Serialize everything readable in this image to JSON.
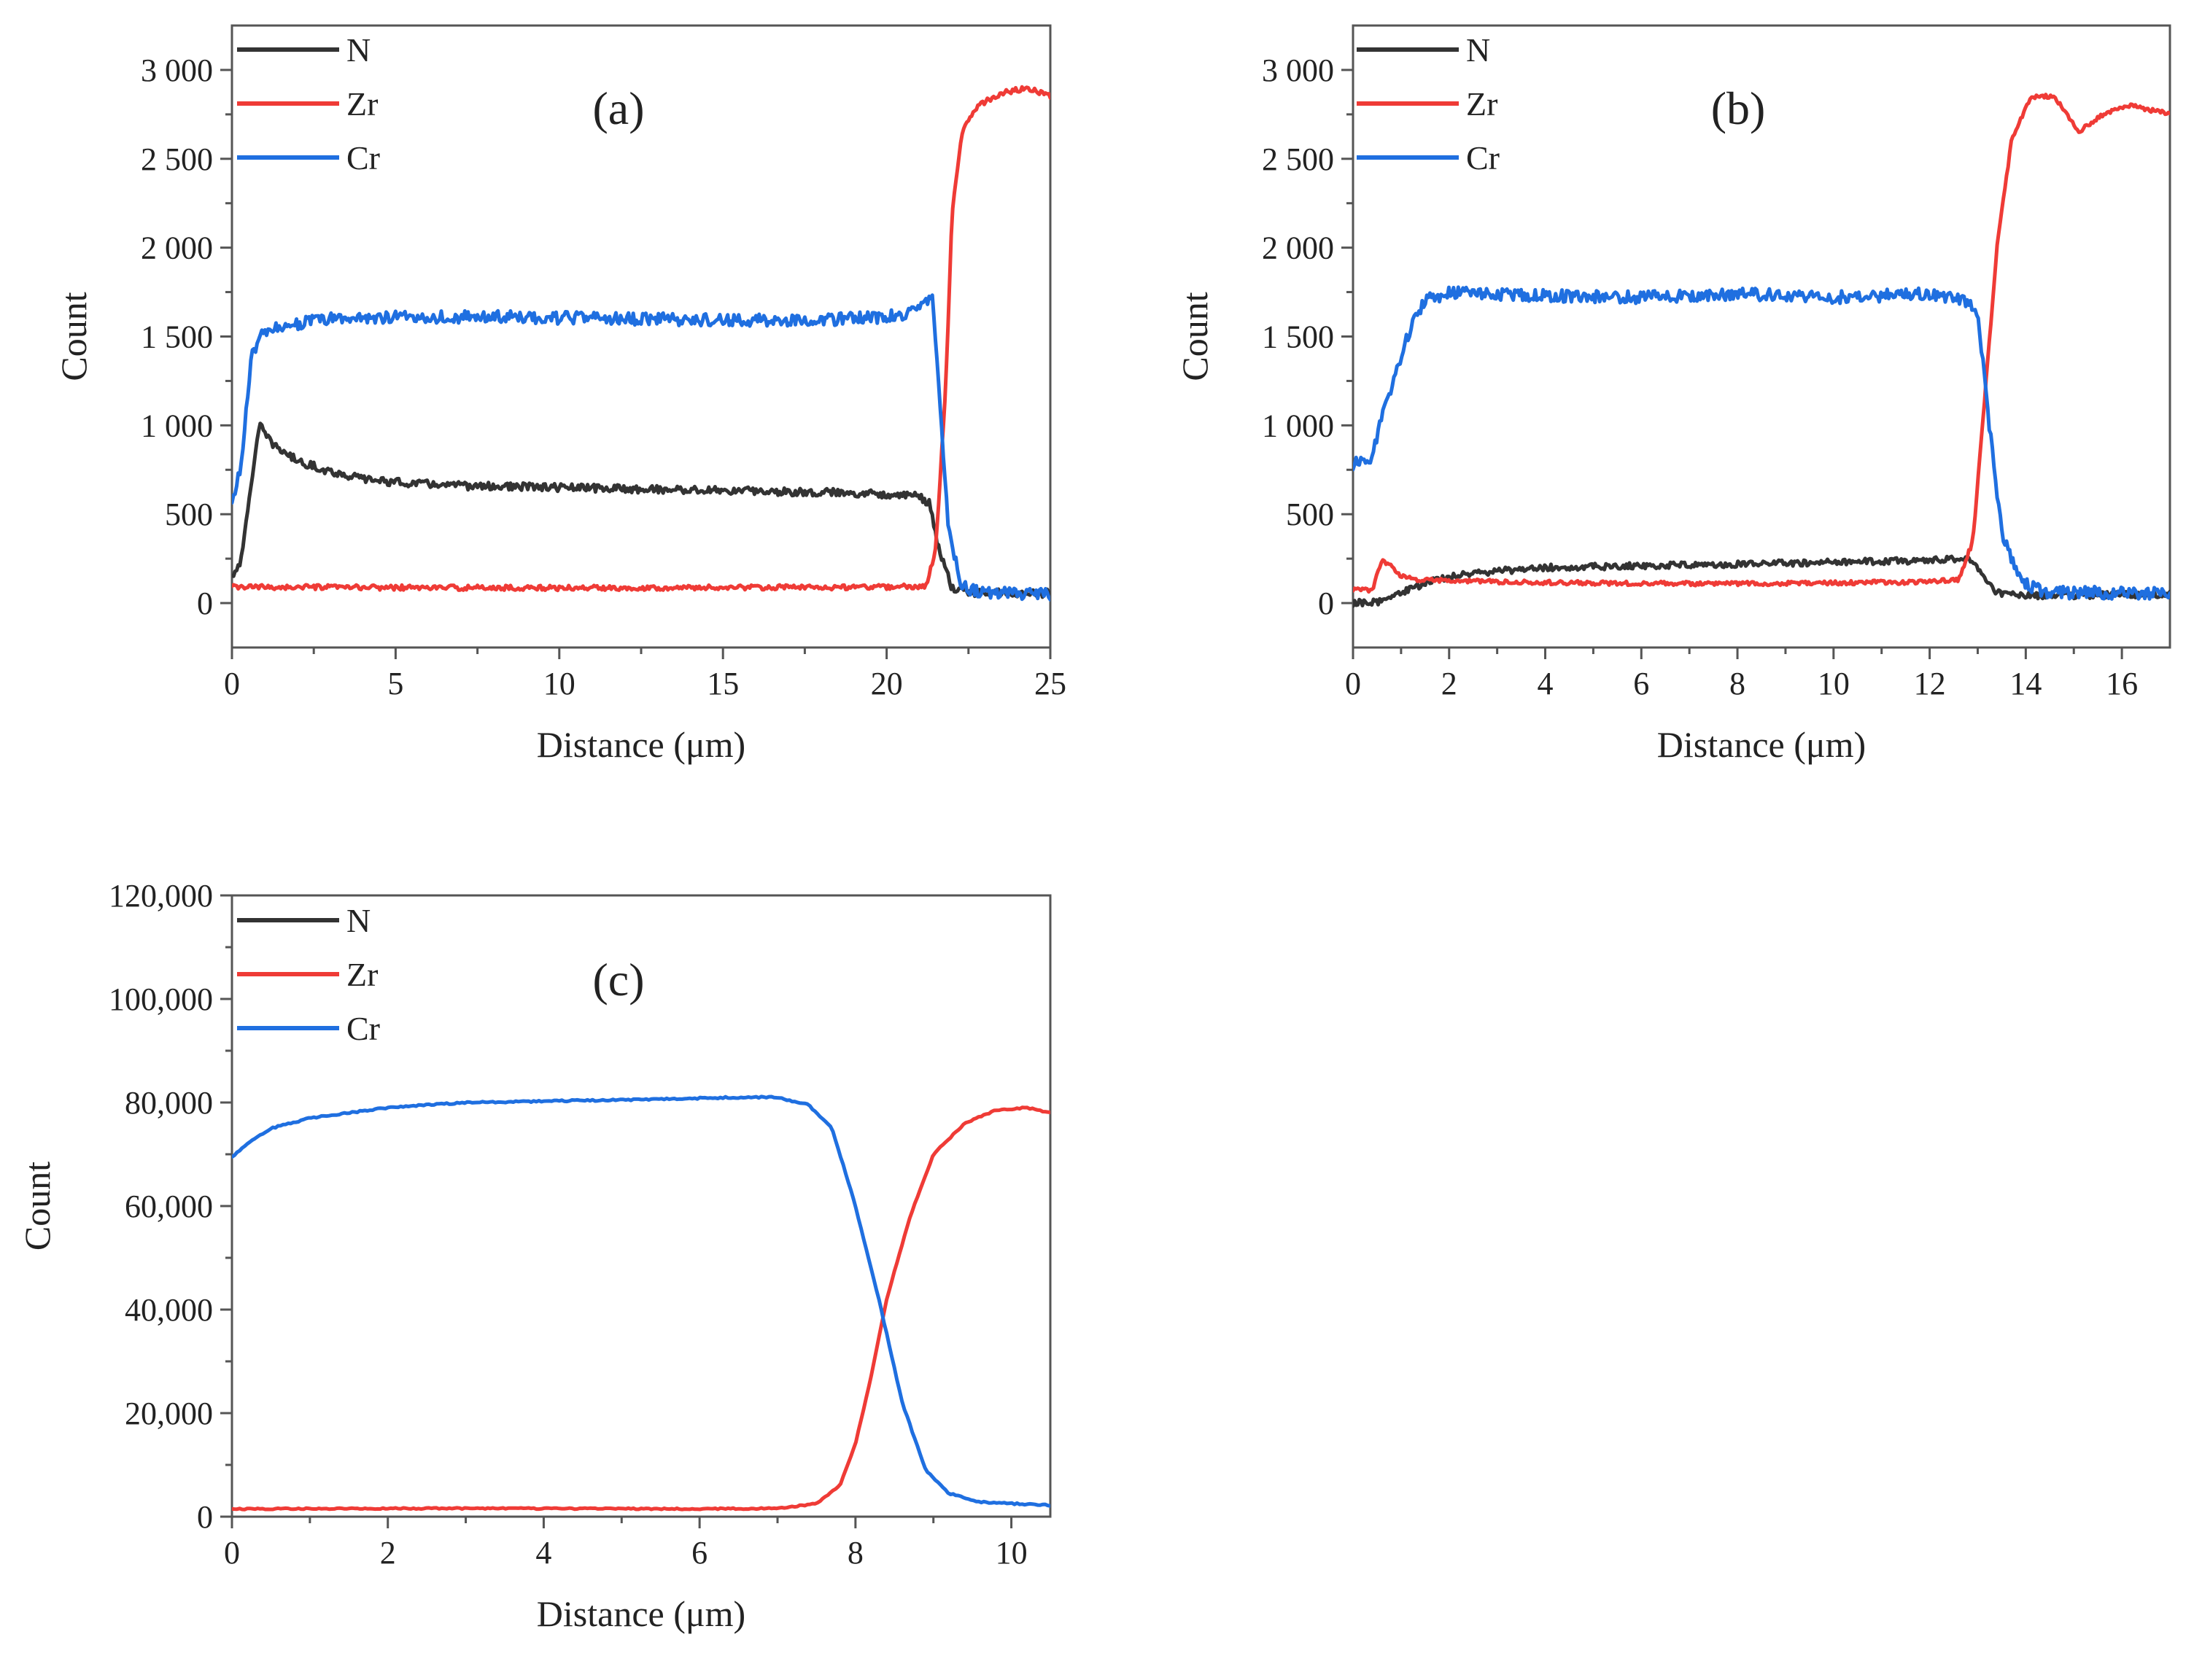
{
  "figure": {
    "legend_entries": [
      {
        "name": "N",
        "color": "#333333"
      },
      {
        "name": "Zr",
        "color": "#ef3b36"
      },
      {
        "name": "Cr",
        "color": "#1f6fe0"
      }
    ]
  },
  "chart_data": [
    {
      "id": "a",
      "type": "line",
      "panel_label": "(a)",
      "xlabel": "Distance (μm)",
      "ylabel": "Count",
      "xlim": [
        0,
        25
      ],
      "ylim": [
        -250,
        3250
      ],
      "xticks": [
        0,
        5,
        10,
        15,
        20,
        25
      ],
      "xtick_labels": [
        "0",
        "5",
        "10",
        "15",
        "20",
        "25"
      ],
      "yticks": [
        0,
        500,
        1000,
        1500,
        2000,
        2500,
        3000
      ],
      "ytick_labels": [
        "0",
        "500",
        "1 000",
        "1 500",
        "2 000",
        "2 500",
        "3 000"
      ],
      "legend": [
        "N",
        "Zr",
        "Cr"
      ],
      "legend_position": "top-left",
      "series": [
        {
          "name": "N",
          "color": "#333333",
          "noise": 22,
          "points": [
            [
              0,
              150
            ],
            [
              0.3,
              250
            ],
            [
              0.6,
              700
            ],
            [
              0.85,
              1000
            ],
            [
              1.2,
              900
            ],
            [
              2,
              800
            ],
            [
              3,
              740
            ],
            [
              4,
              700
            ],
            [
              5,
              680
            ],
            [
              7,
              660
            ],
            [
              10,
              650
            ],
            [
              13,
              640
            ],
            [
              16,
              630
            ],
            [
              19,
              620
            ],
            [
              20.5,
              610
            ],
            [
              21.0,
              600
            ],
            [
              21.3,
              560
            ],
            [
              21.6,
              300
            ],
            [
              22,
              80
            ],
            [
              22.5,
              60
            ],
            [
              25,
              55
            ]
          ]
        },
        {
          "name": "Zr",
          "color": "#ef3b36",
          "noise": 14,
          "points": [
            [
              0,
              90
            ],
            [
              10,
              85
            ],
            [
              20,
              90
            ],
            [
              21.2,
              95
            ],
            [
              21.5,
              300
            ],
            [
              21.8,
              1200
            ],
            [
              22.0,
              2200
            ],
            [
              22.3,
              2650
            ],
            [
              22.8,
              2800
            ],
            [
              23.5,
              2870
            ],
            [
              24.3,
              2900
            ],
            [
              25,
              2850
            ]
          ]
        },
        {
          "name": "Cr",
          "color": "#1f6fe0",
          "noise": 35,
          "points": [
            [
              0,
              550
            ],
            [
              0.3,
              800
            ],
            [
              0.6,
              1400
            ],
            [
              0.9,
              1500
            ],
            [
              1.5,
              1560
            ],
            [
              3,
              1600
            ],
            [
              5,
              1610
            ],
            [
              8,
              1610
            ],
            [
              12,
              1600
            ],
            [
              16,
              1590
            ],
            [
              19,
              1600
            ],
            [
              20.5,
              1620
            ],
            [
              21.2,
              1700
            ],
            [
              21.4,
              1750
            ],
            [
              21.6,
              1200
            ],
            [
              21.9,
              400
            ],
            [
              22.3,
              100
            ],
            [
              22.8,
              60
            ],
            [
              25,
              50
            ]
          ]
        }
      ]
    },
    {
      "id": "b",
      "type": "line",
      "panel_label": "(b)",
      "xlabel": "Distance (μm)",
      "ylabel": "Count",
      "xlim": [
        0,
        17
      ],
      "ylim": [
        -250,
        3250
      ],
      "xticks": [
        0,
        2,
        4,
        6,
        8,
        10,
        12,
        14,
        16
      ],
      "xtick_labels": [
        "0",
        "2",
        "4",
        "6",
        "8",
        "10",
        "12",
        "14",
        "16"
      ],
      "yticks": [
        0,
        500,
        1000,
        1500,
        2000,
        2500,
        3000
      ],
      "ytick_labels": [
        "0",
        "500",
        "1 000",
        "1 500",
        "2 000",
        "2 500",
        "3 000"
      ],
      "legend": [
        "N",
        "Zr",
        "Cr"
      ],
      "legend_position": "top-left",
      "series": [
        {
          "name": "N",
          "color": "#333333",
          "noise": 18,
          "points": [
            [
              0,
              0
            ],
            [
              0.6,
              10
            ],
            [
              1,
              60
            ],
            [
              1.5,
              110
            ],
            [
              2,
              150
            ],
            [
              3,
              180
            ],
            [
              4,
              200
            ],
            [
              6,
              210
            ],
            [
              8,
              220
            ],
            [
              10,
              230
            ],
            [
              12,
              240
            ],
            [
              12.8,
              250
            ],
            [
              13.0,
              200
            ],
            [
              13.4,
              60
            ],
            [
              14,
              40
            ],
            [
              17,
              50
            ]
          ]
        },
        {
          "name": "Zr",
          "color": "#ef3b36",
          "noise": 12,
          "points": [
            [
              0,
              80
            ],
            [
              0.4,
              70
            ],
            [
              0.6,
              240
            ],
            [
              0.8,
              210
            ],
            [
              1,
              150
            ],
            [
              1.3,
              130
            ],
            [
              3,
              120
            ],
            [
              6,
              110
            ],
            [
              9,
              110
            ],
            [
              12,
              120
            ],
            [
              12.6,
              130
            ],
            [
              12.9,
              350
            ],
            [
              13.1,
              1000
            ],
            [
              13.4,
              2000
            ],
            [
              13.7,
              2600
            ],
            [
              14.1,
              2850
            ],
            [
              14.6,
              2850
            ],
            [
              15.1,
              2650
            ],
            [
              15.6,
              2750
            ],
            [
              16.2,
              2800
            ],
            [
              17,
              2750
            ]
          ]
        },
        {
          "name": "Cr",
          "color": "#1f6fe0",
          "noise": 35,
          "points": [
            [
              0,
              780
            ],
            [
              0.4,
              820
            ],
            [
              0.6,
              1050
            ],
            [
              0.9,
              1300
            ],
            [
              1.2,
              1550
            ],
            [
              1.5,
              1700
            ],
            [
              2,
              1750
            ],
            [
              4,
              1730
            ],
            [
              6,
              1720
            ],
            [
              8,
              1740
            ],
            [
              10,
              1720
            ],
            [
              12,
              1740
            ],
            [
              12.8,
              1700
            ],
            [
              13.0,
              1650
            ],
            [
              13.2,
              1100
            ],
            [
              13.5,
              400
            ],
            [
              13.9,
              120
            ],
            [
              14.4,
              60
            ],
            [
              17,
              55
            ]
          ]
        }
      ]
    },
    {
      "id": "c",
      "type": "line",
      "panel_label": "(c)",
      "xlabel": "Distance (μm)",
      "ylabel": "Count",
      "xlim": [
        0,
        10.5
      ],
      "ylim": [
        0,
        120000
      ],
      "xticks": [
        0,
        2,
        4,
        6,
        8,
        10
      ],
      "xtick_labels": [
        "0",
        "2",
        "4",
        "6",
        "8",
        "10"
      ],
      "yticks": [
        0,
        20000,
        40000,
        60000,
        80000,
        100000,
        120000
      ],
      "ytick_labels": [
        "0",
        "20,000",
        "40,000",
        "60,000",
        "80,000",
        "100,000",
        "120,000"
      ],
      "legend": [
        "N",
        "Zr",
        "Cr"
      ],
      "legend_position": "top-left",
      "series": [
        {
          "name": "N",
          "color": "#333333",
          "noise": 0,
          "points": []
        },
        {
          "name": "Zr",
          "color": "#ef3b36",
          "noise": 120,
          "points": [
            [
              0,
              1500
            ],
            [
              3,
              1600
            ],
            [
              6,
              1500
            ],
            [
              7,
              1600
            ],
            [
              7.5,
              2500
            ],
            [
              7.8,
              6000
            ],
            [
              8.0,
              14000
            ],
            [
              8.2,
              27000
            ],
            [
              8.4,
              42000
            ],
            [
              8.7,
              58000
            ],
            [
              9.0,
              70000
            ],
            [
              9.4,
              76000
            ],
            [
              9.8,
              78500
            ],
            [
              10.2,
              79000
            ],
            [
              10.5,
              78000
            ]
          ]
        },
        {
          "name": "Cr",
          "color": "#1f6fe0",
          "noise": 150,
          "points": [
            [
              0,
              69500
            ],
            [
              0.2,
              72000
            ],
            [
              0.5,
              75000
            ],
            [
              1,
              77000
            ],
            [
              2,
              79000
            ],
            [
              3,
              80000
            ],
            [
              5,
              80500
            ],
            [
              6.5,
              81000
            ],
            [
              7.0,
              81000
            ],
            [
              7.4,
              79500
            ],
            [
              7.7,
              75000
            ],
            [
              8.0,
              60000
            ],
            [
              8.3,
              42000
            ],
            [
              8.6,
              22000
            ],
            [
              8.9,
              9000
            ],
            [
              9.2,
              4500
            ],
            [
              9.6,
              2800
            ],
            [
              10.5,
              2200
            ]
          ]
        }
      ]
    }
  ]
}
